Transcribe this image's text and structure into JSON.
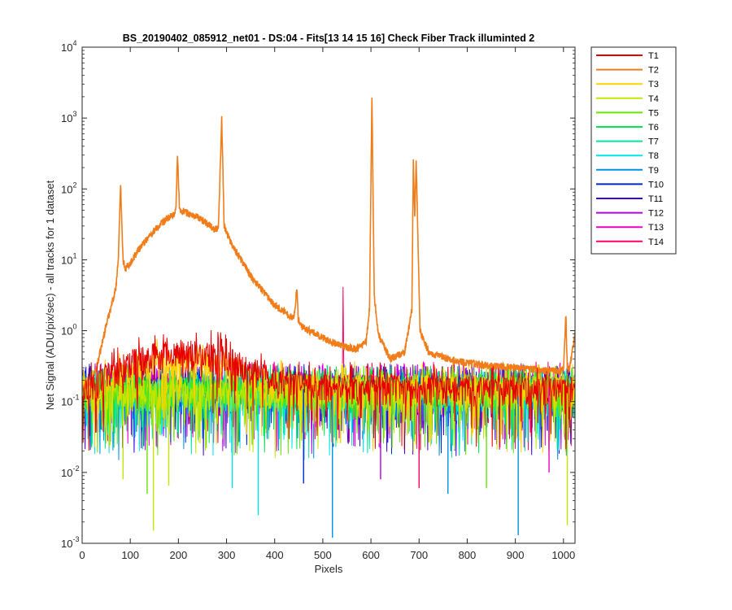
{
  "chart_data": {
    "type": "line",
    "title": "BS_20190402_085912_net01 - DS:04 - Fits[13  14  15  16]   Check Fiber     Track illuminted 2",
    "xlabel": "Pixels",
    "ylabel": "Net Signal (ADU/pix/sec) - all tracks for 1 dataset",
    "xlim": [
      0,
      1024
    ],
    "ylim": [
      0.001,
      10000
    ],
    "yscale": "log",
    "xticks": [
      "0",
      "100",
      "200",
      "300",
      "400",
      "500",
      "600",
      "700",
      "800",
      "900",
      "1000"
    ],
    "yticks": [
      {
        "base": "10",
        "exp": "-3"
      },
      {
        "base": "10",
        "exp": "-2"
      },
      {
        "base": "10",
        "exp": "-1"
      },
      {
        "base": "10",
        "exp": "0"
      },
      {
        "base": "10",
        "exp": "1"
      },
      {
        "base": "10",
        "exp": "2"
      },
      {
        "base": "10",
        "exp": "3"
      },
      {
        "base": "10",
        "exp": "4"
      }
    ],
    "grid": false,
    "legend_position": "outside-right",
    "series": [
      {
        "name": "T1",
        "color": "#e60000",
        "baseline": 0.15,
        "x": [
          0,
          30,
          60,
          100,
          150,
          200,
          250,
          300,
          350,
          400,
          500,
          600,
          700,
          800,
          900,
          1024
        ],
        "y": [
          0.15,
          0.18,
          0.25,
          0.35,
          0.45,
          0.5,
          0.48,
          0.4,
          0.28,
          0.2,
          0.16,
          0.16,
          0.15,
          0.15,
          0.15,
          0.15
        ]
      },
      {
        "name": "T2",
        "color": "#f07d19",
        "baseline": 0.15,
        "x": [
          0,
          20,
          30,
          40,
          50,
          60,
          70,
          75,
          80,
          85,
          90,
          100,
          120,
          150,
          180,
          190,
          195,
          198,
          202,
          205,
          210,
          220,
          240,
          260,
          275,
          283,
          287,
          290,
          295,
          310,
          350,
          400,
          440,
          446,
          449,
          452,
          460,
          500,
          540,
          570,
          590,
          597,
          602,
          607,
          615,
          640,
          670,
          685,
          688,
          691,
          694,
          697,
          702,
          720,
          750,
          800,
          850,
          900,
          950,
          1000,
          1005,
          1008,
          1012,
          1024
        ],
        "y": [
          0.15,
          0.2,
          0.3,
          0.6,
          1.2,
          2.2,
          4.0,
          10,
          120,
          10,
          7.5,
          9,
          15,
          26,
          40,
          42,
          55,
          300,
          60,
          45,
          50,
          45,
          40,
          33,
          27,
          28,
          200,
          1100,
          30,
          17,
          6,
          2.3,
          1.5,
          4.0,
          1.5,
          1.2,
          1.1,
          0.8,
          0.6,
          0.55,
          0.7,
          2.0,
          2150,
          3,
          0.9,
          0.4,
          0.5,
          2.0,
          250,
          40,
          250,
          30,
          1.0,
          0.5,
          0.42,
          0.35,
          0.32,
          0.3,
          0.28,
          0.27,
          1.7,
          0.3,
          0.28,
          0.9
        ]
      },
      {
        "name": "T3",
        "color": "#ffd000",
        "baseline": 0.14,
        "x": [
          0,
          60,
          100,
          150,
          200,
          250,
          300,
          350,
          400,
          1024
        ],
        "y": [
          0.14,
          0.2,
          0.28,
          0.33,
          0.36,
          0.34,
          0.3,
          0.22,
          0.17,
          0.15
        ]
      },
      {
        "name": "T4",
        "color": "#c3e600",
        "baseline": 0.13,
        "x": [
          0,
          1024
        ],
        "y": [
          0.13,
          0.13
        ]
      },
      {
        "name": "T5",
        "color": "#64e600",
        "baseline": 0.14,
        "x": [
          0,
          1024
        ],
        "y": [
          0.14,
          0.14
        ]
      },
      {
        "name": "T6",
        "color": "#00e650",
        "baseline": 0.15,
        "x": [
          0,
          1024
        ],
        "y": [
          0.15,
          0.15
        ]
      },
      {
        "name": "T7",
        "color": "#00e6a0",
        "baseline": 0.13,
        "x": [
          0,
          1024
        ],
        "y": [
          0.13,
          0.13
        ]
      },
      {
        "name": "T8",
        "color": "#00e6e6",
        "baseline": 0.14,
        "x": [
          0,
          1024
        ],
        "y": [
          0.14,
          0.14
        ]
      },
      {
        "name": "T9",
        "color": "#0091e6",
        "baseline": 0.12,
        "x": [
          0,
          1024
        ],
        "y": [
          0.12,
          0.12
        ]
      },
      {
        "name": "T10",
        "color": "#0028c8",
        "baseline": 0.15,
        "x": [
          0,
          1024
        ],
        "y": [
          0.15,
          0.15
        ]
      },
      {
        "name": "T11",
        "color": "#3c00e6",
        "baseline": 0.14,
        "x": [
          0,
          1024
        ],
        "y": [
          0.14,
          0.14
        ]
      },
      {
        "name": "T12",
        "color": "#b400e6",
        "baseline": 0.15,
        "x": [
          0,
          1024
        ],
        "y": [
          0.15,
          0.15
        ]
      },
      {
        "name": "T13",
        "color": "#e600c8",
        "baseline": 0.16,
        "x": [
          0,
          1024
        ],
        "y": [
          0.16,
          0.16
        ]
      },
      {
        "name": "T14",
        "color": "#ff0064",
        "baseline": 0.16,
        "x": [
          0,
          540,
          542,
          544,
          546,
          1024
        ],
        "y": [
          0.16,
          0.16,
          2.8,
          0.16,
          0.16,
          0.16
        ]
      }
    ],
    "dips": [
      {
        "series": "T4",
        "x": 148,
        "y": 0.0015
      },
      {
        "series": "T4",
        "x": 1008,
        "y": 0.0018
      },
      {
        "series": "T8",
        "x": 366,
        "y": 0.0025
      },
      {
        "series": "T9",
        "x": 520,
        "y": 0.0012
      },
      {
        "series": "T9",
        "x": 906,
        "y": 0.0013
      },
      {
        "series": "T4",
        "x": 85,
        "y": 0.008
      },
      {
        "series": "T5",
        "x": 135,
        "y": 0.005
      },
      {
        "series": "T8",
        "x": 312,
        "y": 0.006
      },
      {
        "series": "T4",
        "x": 180,
        "y": 0.0065
      },
      {
        "series": "T14",
        "x": 700,
        "y": 0.006
      },
      {
        "series": "T9",
        "x": 760,
        "y": 0.005
      },
      {
        "series": "T5",
        "x": 840,
        "y": 0.006
      },
      {
        "series": "T10",
        "x": 460,
        "y": 0.007
      },
      {
        "series": "T12",
        "x": 620,
        "y": 0.008
      },
      {
        "series": "T13",
        "x": 970,
        "y": 0.01
      }
    ]
  }
}
